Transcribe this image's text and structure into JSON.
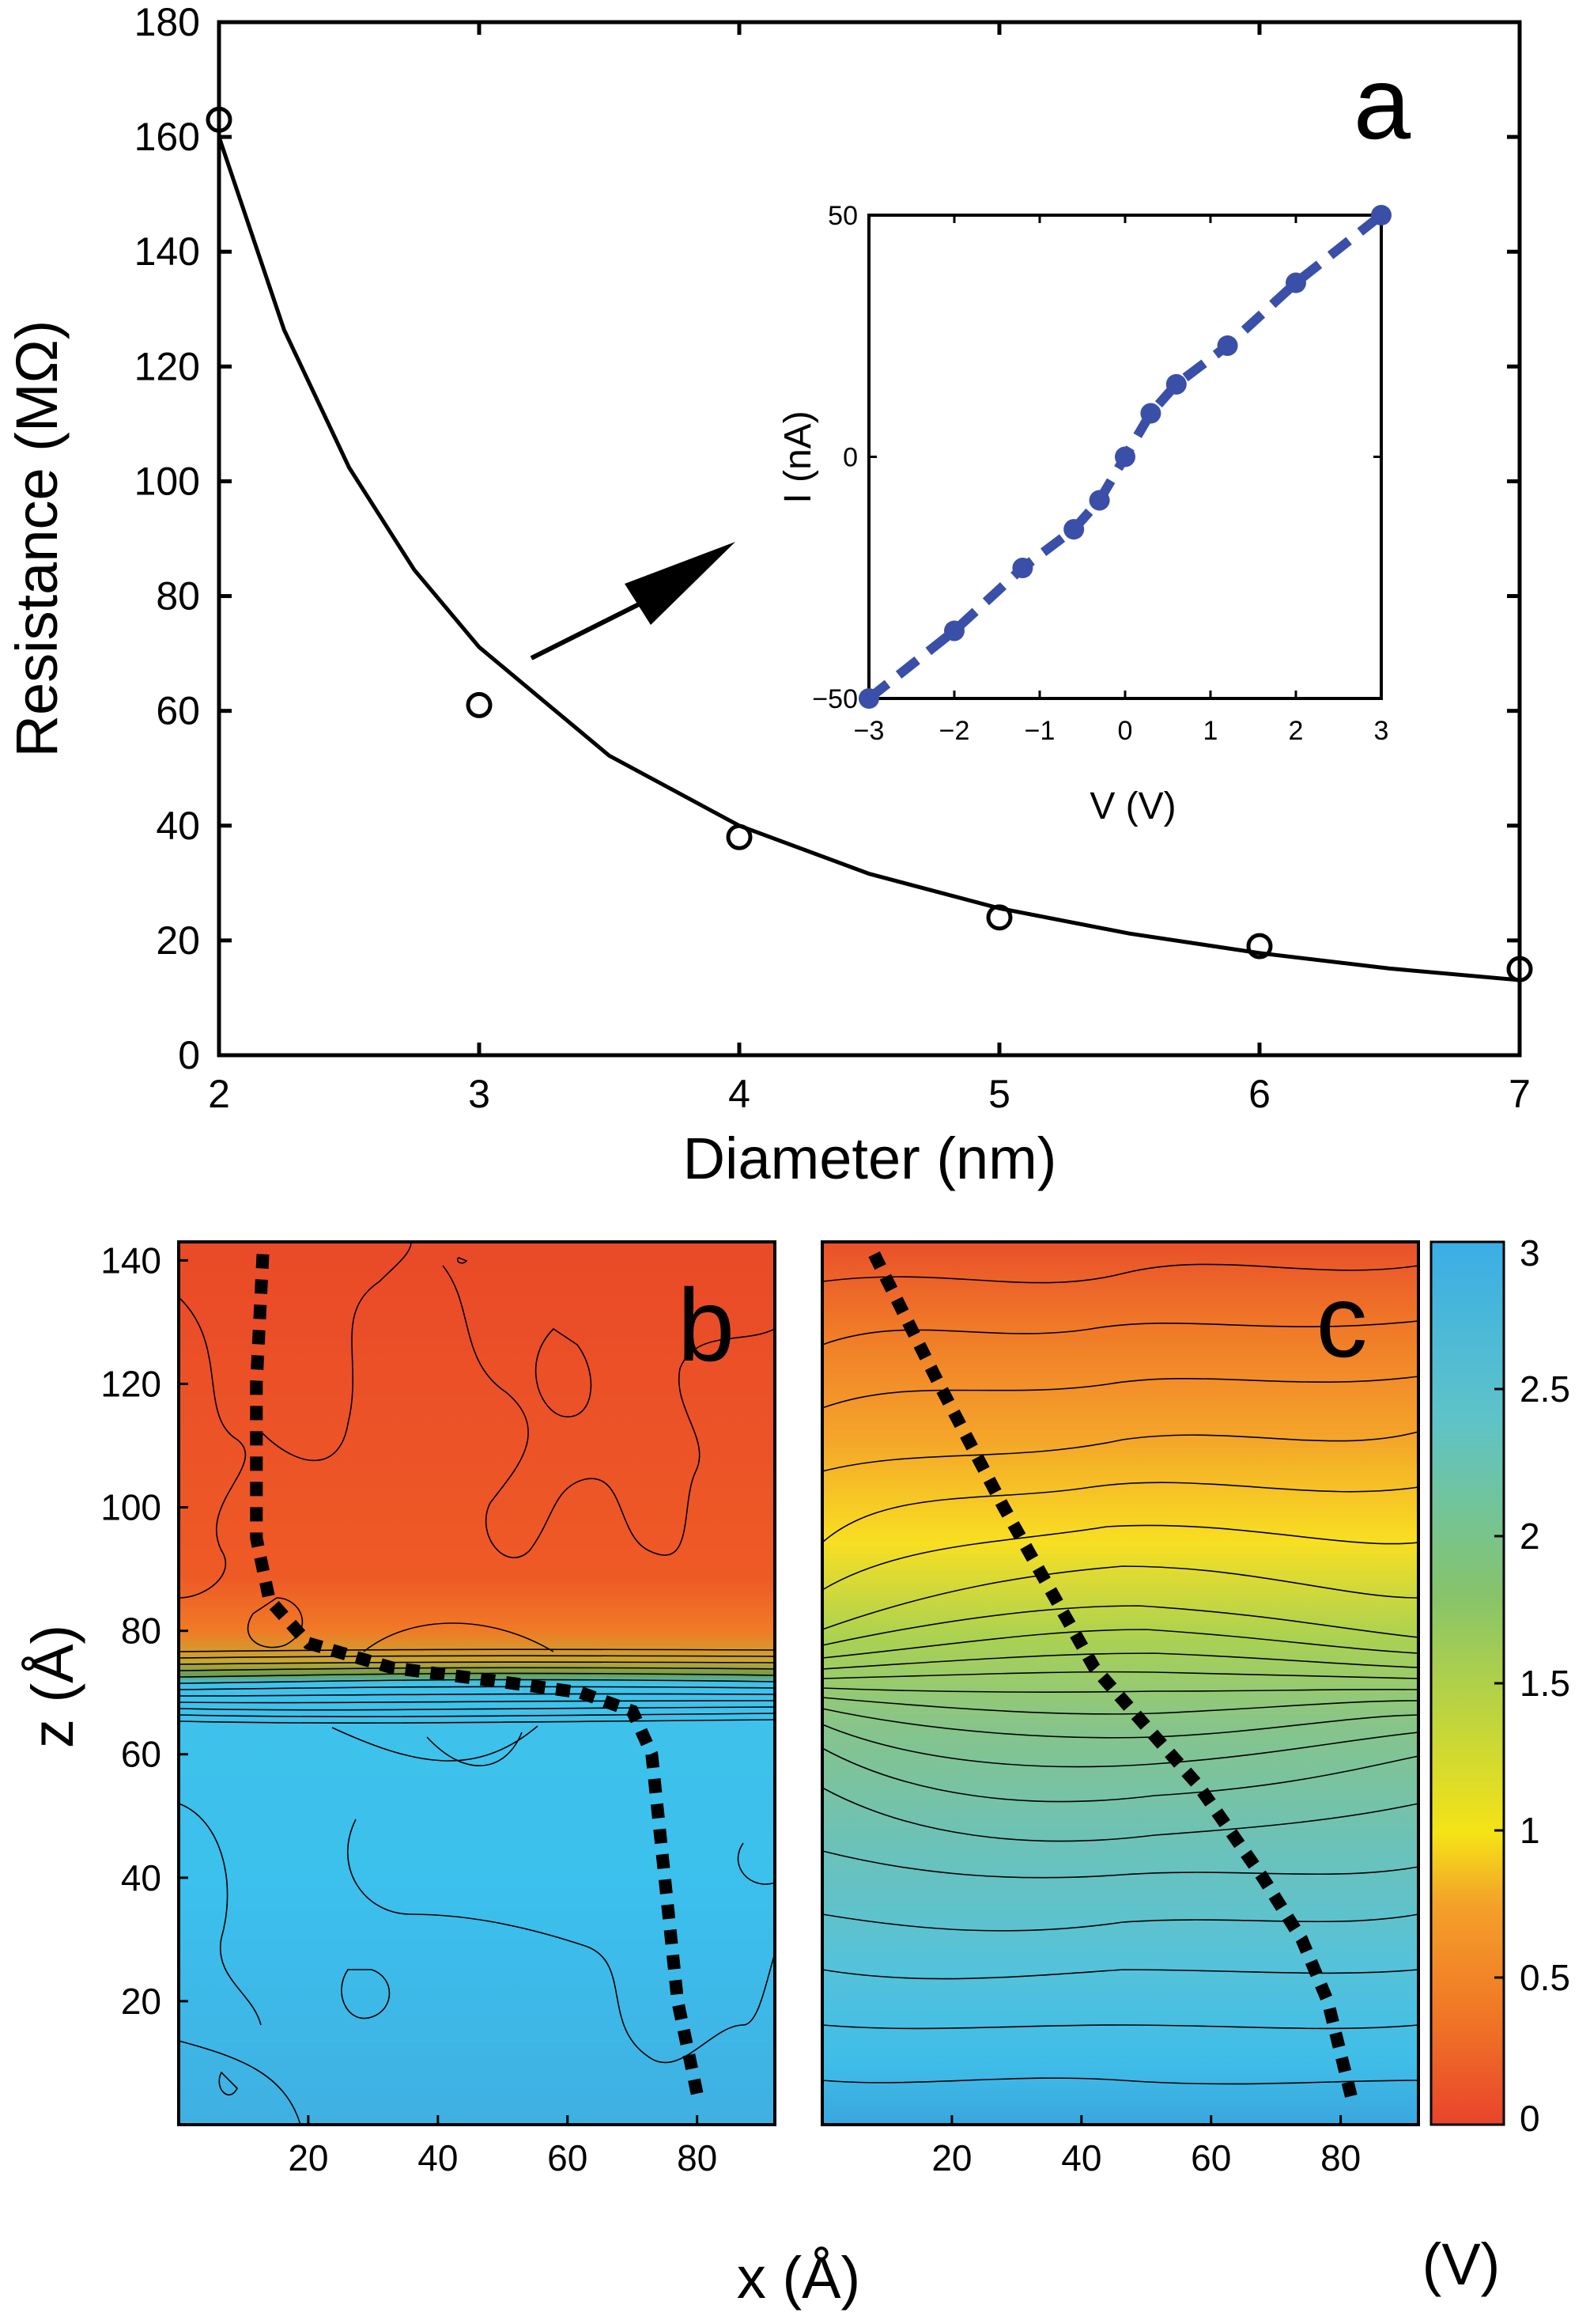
{
  "chart_data": [
    {
      "type": "scatter",
      "panel_label": "a",
      "xlabel": "Diameter (nm)",
      "ylabel": "Resistance (MΩ)",
      "xlim": [
        2,
        7
      ],
      "ylim": [
        0,
        180
      ],
      "xticks": [
        "2",
        "3",
        "4",
        "5",
        "6",
        "7"
      ],
      "yticks": [
        "0",
        "20",
        "40",
        "60",
        "80",
        "100",
        "120",
        "140",
        "160",
        "180"
      ],
      "series": [
        {
          "marker": "open-circle",
          "x": [
            2,
            3,
            4,
            5,
            6,
            7
          ],
          "y": [
            163,
            61,
            38,
            24,
            19,
            15
          ]
        }
      ],
      "fit": {
        "type": "power-law",
        "x": [
          2,
          2.25,
          2.5,
          2.75,
          3,
          3.5,
          4,
          4.5,
          5,
          5.5,
          6,
          6.5,
          7
        ],
        "y": [
          160,
          126.4,
          102.4,
          84.6,
          71.1,
          52.2,
          40,
          31.6,
          25.6,
          21.2,
          17.8,
          15.1,
          13.1
        ]
      }
    },
    {
      "type": "line",
      "inset_of": "a",
      "xlabel": "V (V)",
      "ylabel": "I (nA)",
      "xlim": [
        -3,
        3
      ],
      "ylim": [
        -50,
        50
      ],
      "xticks": [
        "−3",
        "−2",
        "−1",
        "0",
        "1",
        "2",
        "3"
      ],
      "yticks": [
        "−50",
        "0",
        "50"
      ],
      "color": "#3a4fa8",
      "series": [
        {
          "x": [
            -3,
            -2,
            -1.2,
            -0.6,
            -0.3,
            0,
            0.3,
            0.6,
            1.2,
            2,
            3
          ],
          "y": [
            -50,
            -36,
            -23,
            -15,
            -9,
            0,
            9,
            15,
            23,
            36,
            50
          ]
        }
      ]
    },
    {
      "type": "heatmap",
      "panel_label": "b",
      "xlabel": "x (Å)",
      "ylabel": "z (Å)",
      "xlim": [
        0,
        92
      ],
      "ylim": [
        0,
        143
      ],
      "xticks": [
        "20",
        "40",
        "60",
        "80"
      ],
      "yticks": [
        "20",
        "40",
        "60",
        "80",
        "100",
        "120",
        "140"
      ],
      "path": {
        "style": "dotted",
        "x": [
          13,
          12,
          12,
          14,
          20,
          33,
          48,
          62,
          70,
          73,
          75,
          77,
          80
        ],
        "z": [
          141,
          120,
          95,
          85,
          78,
          74,
          72,
          70,
          67,
          60,
          40,
          20,
          5
        ]
      }
    },
    {
      "type": "heatmap",
      "panel_label": "c",
      "xlim": [
        0,
        92
      ],
      "ylim": [
        0,
        143
      ],
      "xticks": [
        "20",
        "40",
        "60",
        "80"
      ],
      "path": {
        "style": "dotted",
        "x": [
          8,
          18,
          28,
          42,
          58,
          68,
          74,
          78,
          82
        ],
        "z": [
          141,
          120,
          100,
          74,
          55,
          40,
          30,
          20,
          3
        ]
      }
    },
    {
      "type": "colorbar",
      "label": "(V)",
      "range": [
        0,
        3
      ],
      "ticks": [
        "0",
        "0.5",
        "1",
        "1.5",
        "2",
        "2.5",
        "3"
      ],
      "colors": [
        "#e8442b",
        "#f4a12a",
        "#f5e316",
        "#86c46a",
        "#5ec3c8",
        "#3aaee6"
      ]
    }
  ]
}
